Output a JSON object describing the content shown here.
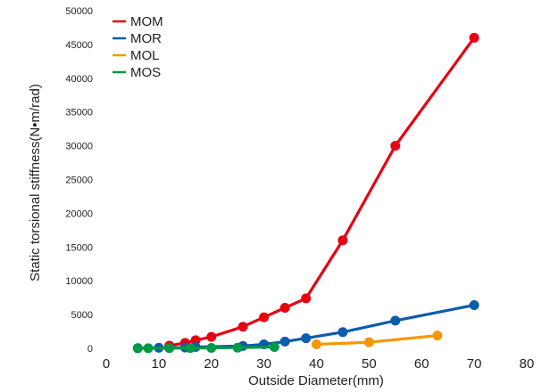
{
  "chart_data": {
    "type": "line",
    "title": "",
    "xlabel": "Outside Diameter(mm)",
    "ylabel": "Static torsional stiffness(N•m/rad)",
    "xlim": [
      0,
      80
    ],
    "ylim": [
      0,
      50000
    ],
    "x_ticks": [
      "0",
      "10",
      "20",
      "30",
      "40",
      "50",
      "60",
      "70",
      "80"
    ],
    "y_ticks": [
      "0",
      "5000",
      "10000",
      "15000",
      "20000",
      "25000",
      "30000",
      "35000",
      "40000",
      "45000",
      "50000"
    ],
    "grid": false,
    "legend_position": "top-left",
    "series": [
      {
        "name": "MOM",
        "color": "#e60012",
        "points": [
          [
            12,
            400
          ],
          [
            15,
            800
          ],
          [
            17,
            1200
          ],
          [
            20,
            1700
          ],
          [
            26,
            3200
          ],
          [
            30,
            4600
          ],
          [
            34,
            6000
          ],
          [
            38,
            7400
          ],
          [
            45,
            16000
          ],
          [
            55,
            30000
          ],
          [
            70,
            46000
          ]
        ]
      },
      {
        "name": "MOR",
        "color": "#0a5cad",
        "points": [
          [
            6,
            30
          ],
          [
            10,
            80
          ],
          [
            15,
            120
          ],
          [
            17,
            200
          ],
          [
            26,
            350
          ],
          [
            30,
            600
          ],
          [
            34,
            1000
          ],
          [
            38,
            1500
          ],
          [
            45,
            2400
          ],
          [
            55,
            4100
          ],
          [
            70,
            6400
          ]
        ]
      },
      {
        "name": "MOL",
        "color": "#f39800",
        "points": [
          [
            40,
            600
          ],
          [
            50,
            900
          ],
          [
            63,
            1900
          ]
        ]
      },
      {
        "name": "MOS",
        "color": "#009944",
        "points": [
          [
            6,
            10
          ],
          [
            8,
            20
          ],
          [
            12,
            30
          ],
          [
            16,
            50
          ],
          [
            20,
            70
          ],
          [
            25,
            100
          ],
          [
            32,
            200
          ]
        ]
      }
    ]
  }
}
